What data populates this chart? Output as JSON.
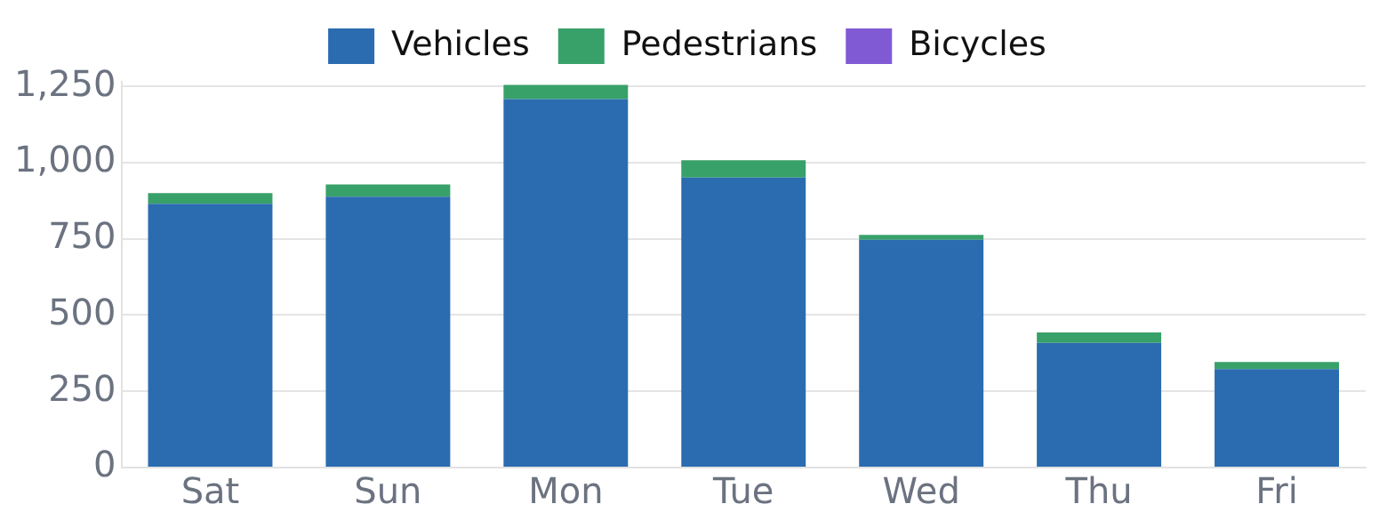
{
  "chart_data": {
    "type": "bar",
    "stacked": true,
    "categories": [
      "Sat",
      "Sun",
      "Mon",
      "Tue",
      "Wed",
      "Thu",
      "Fri"
    ],
    "series": [
      {
        "name": "Vehicles",
        "color": "#2b6cb0",
        "values": [
          865,
          888,
          1208,
          951,
          747,
          409,
          323
        ]
      },
      {
        "name": "Pedestrians",
        "color": "#38a169",
        "values": [
          35,
          40,
          47,
          57,
          16,
          34,
          23
        ]
      },
      {
        "name": "Bicycles",
        "color": "#805ad5",
        "values": [
          0,
          0,
          0,
          0,
          0,
          0,
          0
        ]
      }
    ],
    "ylim": [
      0,
      1265
    ],
    "yticks": [
      0,
      250,
      500,
      750,
      {
        "value": 1000,
        "label": "1,000"
      },
      {
        "value": 1250,
        "label": "1,250"
      }
    ],
    "grid": "y",
    "legend": "top"
  }
}
